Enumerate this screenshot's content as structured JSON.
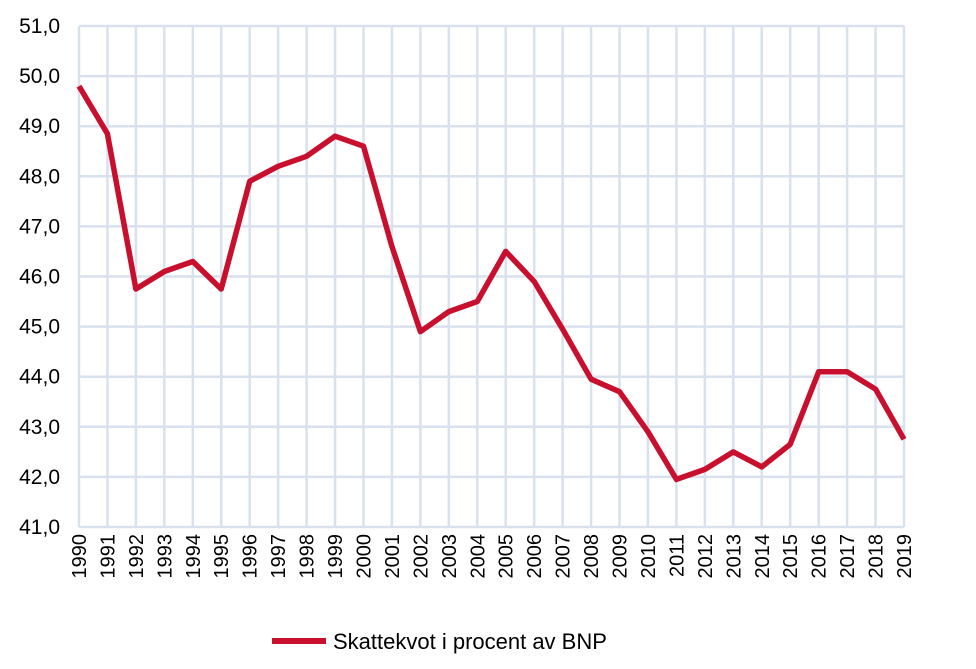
{
  "chart_data": {
    "type": "line",
    "title": "",
    "xlabel": "",
    "ylabel": "",
    "ylim": [
      41.0,
      51.0
    ],
    "y_ticks": [
      "41,0",
      "42,0",
      "43,0",
      "44,0",
      "45,0",
      "46,0",
      "47,0",
      "48,0",
      "49,0",
      "50,0",
      "51,0"
    ],
    "categories": [
      "1990",
      "1991",
      "1992",
      "1993",
      "1994",
      "1995",
      "1996",
      "1997",
      "1998",
      "1999",
      "2000",
      "2001",
      "2002",
      "2003",
      "2004",
      "2005",
      "2006",
      "2007",
      "2008",
      "2009",
      "2010",
      "2011",
      "2012",
      "2013",
      "2014",
      "2015",
      "2016",
      "2017",
      "2018",
      "2019"
    ],
    "series": [
      {
        "name": "Skattekvot i procent av BNP",
        "color": "#c8102e",
        "values": [
          49.8,
          48.85,
          45.75,
          46.1,
          46.3,
          45.75,
          47.9,
          48.2,
          48.4,
          48.8,
          48.6,
          46.6,
          44.9,
          45.3,
          45.5,
          46.5,
          45.9,
          44.95,
          43.95,
          43.7,
          42.9,
          41.95,
          42.15,
          42.5,
          42.2,
          42.65,
          44.1,
          44.1,
          43.75,
          42.75
        ]
      }
    ],
    "grid": true,
    "grid_color": "#d9e1ee",
    "legend_position": "bottom"
  }
}
